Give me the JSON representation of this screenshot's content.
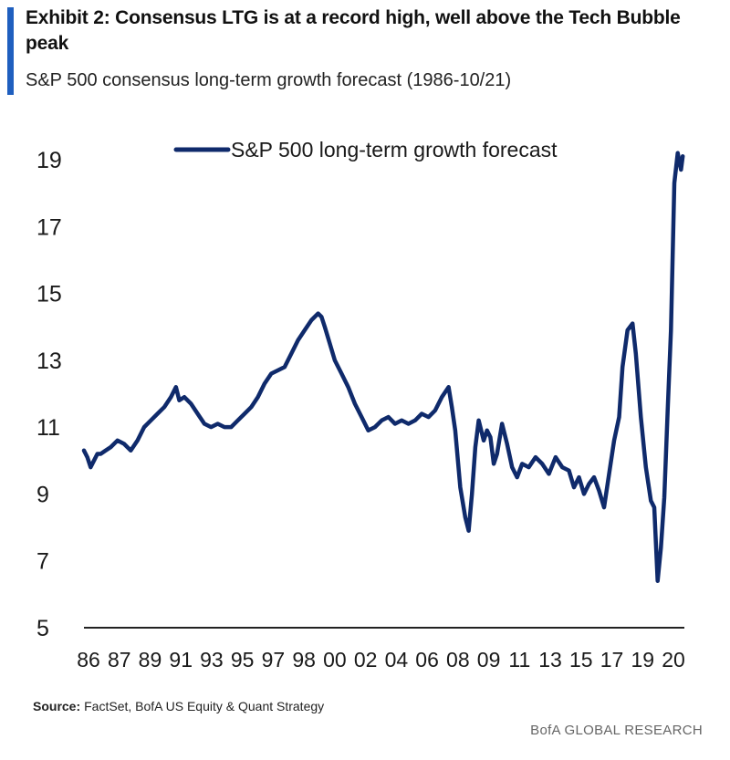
{
  "header": {
    "title": "Exhibit 2: Consensus LTG is at a record high, well above the Tech Bubble peak",
    "subtitle": "S&P 500 consensus long-term growth forecast (1986-10/21)"
  },
  "footer": {
    "source_label": "Source:",
    "source_text": "FactSet, BofA US Equity & Quant Strategy",
    "brand": "BofA GLOBAL RESEARCH"
  },
  "colors": {
    "line": "#0f2a6b",
    "accent": "#1f5fbf",
    "axis": "#222222"
  },
  "chart_data": {
    "type": "line",
    "title": "",
    "xlabel": "",
    "ylabel": "",
    "legend": "top-center",
    "grid": false,
    "ylim": [
      5,
      19.5
    ],
    "xlim": [
      1986,
      2021.9
    ],
    "yticks": [
      5,
      7,
      9,
      11,
      13,
      15,
      17,
      19
    ],
    "xtick_labels": [
      "86",
      "87",
      "89",
      "91",
      "93",
      "95",
      "97",
      "98",
      "00",
      "02",
      "04",
      "06",
      "08",
      "09",
      "11",
      "13",
      "15",
      "17",
      "19",
      "20"
    ],
    "series": [
      {
        "name": "S&P 500 long-term growth forecast",
        "x": [
          1986.0,
          1986.2,
          1986.4,
          1986.6,
          1986.8,
          1987.0,
          1987.3,
          1987.6,
          1988.0,
          1988.4,
          1988.8,
          1989.2,
          1989.6,
          1990.0,
          1990.4,
          1990.8,
          1991.2,
          1991.5,
          1991.7,
          1992.0,
          1992.4,
          1992.8,
          1993.2,
          1993.6,
          1994.0,
          1994.4,
          1994.8,
          1995.2,
          1995.6,
          1996.0,
          1996.4,
          1996.8,
          1997.2,
          1997.6,
          1998.0,
          1998.4,
          1998.8,
          1999.2,
          1999.6,
          2000.0,
          2000.2,
          2000.4,
          2000.7,
          2001.0,
          2001.4,
          2001.8,
          2002.2,
          2002.6,
          2003.0,
          2003.4,
          2003.8,
          2004.2,
          2004.6,
          2005.0,
          2005.4,
          2005.8,
          2006.2,
          2006.6,
          2007.0,
          2007.4,
          2007.8,
          2008.0,
          2008.2,
          2008.5,
          2008.8,
          2009.0,
          2009.2,
          2009.4,
          2009.6,
          2009.9,
          2010.1,
          2010.3,
          2010.5,
          2010.7,
          2011.0,
          2011.3,
          2011.6,
          2011.9,
          2012.2,
          2012.6,
          2013.0,
          2013.4,
          2013.8,
          2014.2,
          2014.6,
          2015.0,
          2015.3,
          2015.6,
          2015.9,
          2016.2,
          2016.5,
          2016.8,
          2017.1,
          2017.4,
          2017.7,
          2018.0,
          2018.2,
          2018.5,
          2018.8,
          2019.0,
          2019.3,
          2019.6,
          2019.9,
          2020.1,
          2020.3,
          2020.5,
          2020.7,
          2020.9,
          2021.1,
          2021.3,
          2021.5,
          2021.7,
          2021.8
        ],
        "values": [
          10.3,
          10.1,
          9.8,
          10.0,
          10.2,
          10.2,
          10.3,
          10.4,
          10.6,
          10.5,
          10.3,
          10.6,
          11.0,
          11.2,
          11.4,
          11.6,
          11.9,
          12.2,
          11.8,
          11.9,
          11.7,
          11.4,
          11.1,
          11.0,
          11.1,
          11.0,
          11.0,
          11.2,
          11.4,
          11.6,
          11.9,
          12.3,
          12.6,
          12.7,
          12.8,
          13.2,
          13.6,
          13.9,
          14.2,
          14.4,
          14.3,
          14.0,
          13.5,
          13.0,
          12.6,
          12.2,
          11.7,
          11.3,
          10.9,
          11.0,
          11.2,
          11.3,
          11.1,
          11.2,
          11.1,
          11.2,
          11.4,
          11.3,
          11.5,
          11.9,
          12.2,
          11.6,
          10.9,
          9.2,
          8.3,
          7.9,
          9.0,
          10.4,
          11.2,
          10.6,
          10.9,
          10.7,
          9.9,
          10.2,
          11.1,
          10.5,
          9.8,
          9.5,
          9.9,
          9.8,
          10.1,
          9.9,
          9.6,
          10.1,
          9.8,
          9.7,
          9.2,
          9.5,
          9.0,
          9.3,
          9.5,
          9.1,
          8.6,
          9.6,
          10.6,
          11.3,
          12.8,
          13.9,
          14.1,
          13.2,
          11.3,
          9.8,
          8.8,
          8.6,
          6.4,
          7.4,
          8.9,
          11.5,
          13.9,
          18.3,
          19.2,
          18.7,
          19.1
        ]
      }
    ]
  }
}
